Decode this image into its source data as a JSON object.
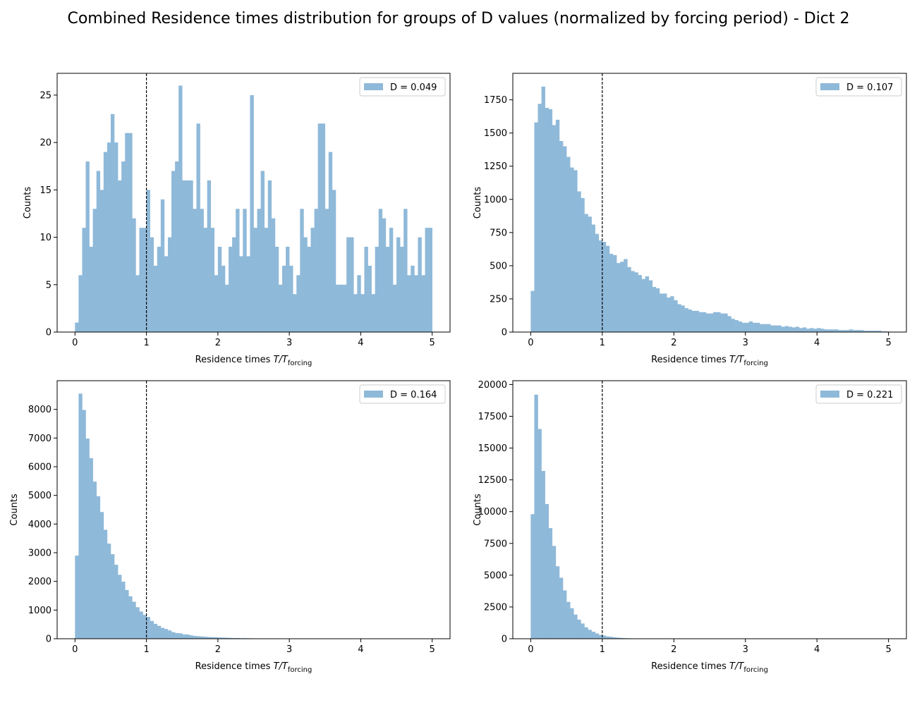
{
  "figure": {
    "title": "Combined Residence times distribution for groups of D values (normalized by forcing period) - Dict 2"
  },
  "chart_data": [
    {
      "type": "bar",
      "legend": "D = 0.049",
      "legend_placement": "top-right",
      "xlabel_main": "Residence times ",
      "xlabel_math": "T/T",
      "xlabel_sub": "forcing",
      "ylabel": "Counts",
      "xlim": [
        -0.25,
        5.25
      ],
      "ylim": [
        0,
        27.3
      ],
      "xticks": [
        0,
        1,
        2,
        3,
        4,
        5
      ],
      "yticks": [
        0,
        5,
        10,
        15,
        20,
        25
      ],
      "bins": {
        "start": 0,
        "width": 0.05
      },
      "values": [
        1,
        6,
        11,
        18,
        9,
        13,
        17,
        15,
        19,
        20,
        23,
        20,
        16,
        18,
        21,
        21,
        12,
        6,
        11,
        11,
        15,
        10,
        7,
        9,
        14,
        8,
        10,
        17,
        18,
        26,
        16,
        16,
        16,
        13,
        22,
        13,
        11,
        16,
        11,
        6,
        9,
        7,
        5,
        9,
        10,
        13,
        8,
        13,
        8,
        25,
        11,
        13,
        17,
        11,
        16,
        12,
        9,
        5,
        7,
        9,
        7,
        4,
        6,
        13,
        10,
        9,
        11,
        13,
        22,
        22,
        13,
        19,
        15,
        5,
        5,
        5,
        10,
        10,
        4,
        6,
        4,
        9,
        7,
        4,
        9,
        13,
        12,
        9,
        11,
        5,
        10,
        9,
        13,
        6,
        7,
        6,
        10,
        6,
        11,
        11
      ],
      "vline": 1,
      "grid": false,
      "color": "#8fb9d9"
    },
    {
      "type": "bar",
      "legend": "D = 0.107",
      "legend_placement": "top-right",
      "xlabel_main": "Residence times ",
      "xlabel_math": "T/T",
      "xlabel_sub": "forcing",
      "ylabel": "Counts",
      "xlim": [
        -0.25,
        5.25
      ],
      "ylim": [
        0,
        1950
      ],
      "xticks": [
        0,
        1,
        2,
        3,
        4,
        5
      ],
      "yticks": [
        0,
        250,
        500,
        750,
        1000,
        1250,
        1500,
        1750
      ],
      "bins": {
        "start": 0,
        "width": 0.05
      },
      "values": [
        310,
        1580,
        1720,
        1850,
        1690,
        1680,
        1560,
        1600,
        1440,
        1400,
        1320,
        1240,
        1220,
        1060,
        1010,
        890,
        870,
        810,
        740,
        690,
        680,
        650,
        590,
        580,
        520,
        530,
        550,
        490,
        460,
        450,
        430,
        400,
        420,
        390,
        340,
        330,
        290,
        290,
        260,
        270,
        240,
        210,
        200,
        180,
        170,
        160,
        160,
        150,
        150,
        140,
        140,
        150,
        150,
        140,
        140,
        120,
        100,
        90,
        80,
        70,
        70,
        80,
        70,
        70,
        60,
        60,
        60,
        50,
        50,
        50,
        40,
        45,
        40,
        35,
        40,
        30,
        35,
        25,
        30,
        25,
        30,
        25,
        20,
        20,
        20,
        20,
        15,
        15,
        15,
        20,
        15,
        15,
        15,
        10,
        10,
        10,
        10,
        10,
        5,
        5
      ],
      "vline": 1,
      "grid": false,
      "color": "#8fb9d9"
    },
    {
      "type": "bar",
      "legend": "D = 0.164",
      "legend_placement": "top-right",
      "xlabel_main": "Residence times ",
      "xlabel_math": "T/T",
      "xlabel_sub": "forcing",
      "ylabel": "Counts",
      "xlim": [
        -0.25,
        5.25
      ],
      "ylim": [
        0,
        9000
      ],
      "xticks": [
        0,
        1,
        2,
        3,
        4,
        5
      ],
      "yticks": [
        0,
        1000,
        2000,
        3000,
        4000,
        5000,
        6000,
        7000,
        8000
      ],
      "bins": {
        "start": 0,
        "width": 0.05
      },
      "values": [
        2900,
        8550,
        7980,
        6980,
        6300,
        5480,
        4970,
        4420,
        3800,
        3320,
        2950,
        2580,
        2230,
        1990,
        1700,
        1480,
        1290,
        1100,
        950,
        830,
        760,
        620,
        520,
        450,
        380,
        340,
        290,
        230,
        200,
        190,
        150,
        150,
        120,
        100,
        90,
        80,
        70,
        60,
        55,
        50,
        45,
        40,
        35,
        30,
        25,
        25,
        20,
        20,
        15,
        15,
        12,
        12,
        10,
        10,
        8,
        8,
        6,
        6,
        5,
        5,
        4,
        4,
        3,
        3,
        3,
        2,
        2,
        2,
        2,
        2,
        1,
        1,
        1,
        1,
        1,
        1,
        1,
        1,
        1,
        1,
        0,
        0,
        0,
        0,
        0,
        0,
        0,
        0,
        0,
        0,
        0,
        0,
        0,
        0,
        0,
        0,
        0,
        0,
        0,
        0
      ],
      "vline": 1,
      "grid": false,
      "color": "#8fb9d9"
    },
    {
      "type": "bar",
      "legend": "D = 0.221",
      "legend_placement": "top-right",
      "xlabel_main": "Residence times ",
      "xlabel_math": "T/T",
      "xlabel_sub": "forcing",
      "ylabel": "Counts",
      "xlim": [
        -0.25,
        5.25
      ],
      "ylim": [
        0,
        20300
      ],
      "xticks": [
        0,
        1,
        2,
        3,
        4,
        5
      ],
      "yticks": [
        0,
        2500,
        5000,
        7500,
        10000,
        12500,
        15000,
        17500,
        20000
      ],
      "bins": {
        "start": 0,
        "width": 0.05
      },
      "values": [
        9800,
        19200,
        16500,
        13200,
        10600,
        8700,
        7300,
        5700,
        4800,
        3800,
        2900,
        2400,
        1900,
        1500,
        1200,
        900,
        700,
        550,
        420,
        300,
        250,
        180,
        150,
        110,
        80,
        60,
        45,
        35,
        25,
        20,
        15,
        12,
        10,
        8,
        6,
        5,
        4,
        3,
        2,
        2,
        1,
        1,
        1,
        1,
        1,
        0,
        0,
        0,
        0,
        0,
        0,
        0,
        0,
        0,
        0,
        0,
        0,
        0,
        0,
        0,
        0,
        0,
        0,
        0,
        0,
        0,
        0,
        0,
        0,
        0,
        0,
        0,
        0,
        0,
        0,
        0,
        0,
        0,
        0,
        0,
        0,
        0,
        0,
        0,
        0,
        0,
        0,
        0,
        0,
        0,
        0,
        0,
        0,
        0,
        0,
        0,
        0,
        0,
        0,
        0
      ],
      "vline": 1,
      "grid": false,
      "color": "#8fb9d9"
    }
  ]
}
